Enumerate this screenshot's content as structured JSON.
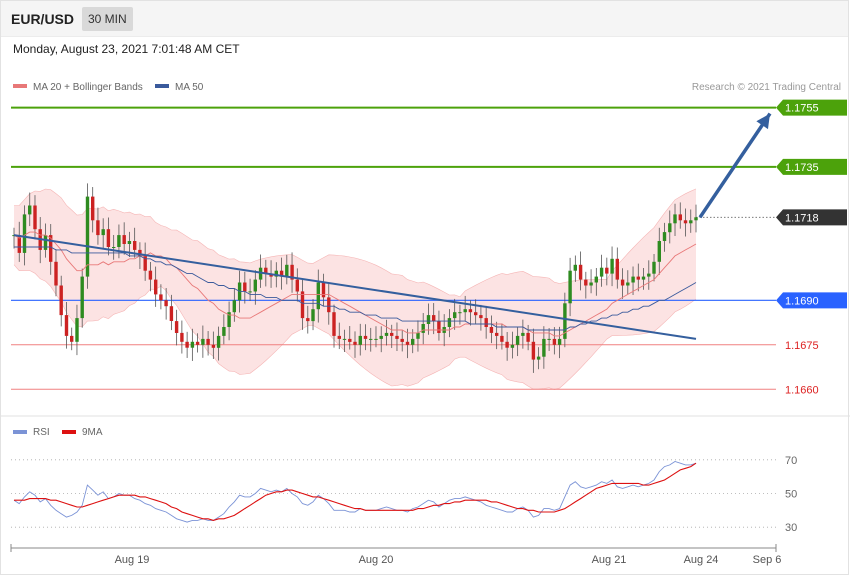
{
  "header": {
    "symbol": "EUR/USD",
    "timeframe": "30 MIN",
    "datetime": "Monday, August 23, 2021 7:01:48 AM CET"
  },
  "legend": {
    "ma20_label": "MA 20 + Bollinger Bands",
    "ma50_label": "MA 50",
    "rsi_label": "RSI",
    "ma9_label": "9MA",
    "copyright": "Research © 2021 Trading Central"
  },
  "colors": {
    "resistance": "#4ca20b",
    "support_major": "#2962ff",
    "support_minor": "#f08080",
    "current": "#333333",
    "up_candle": "#2e8b20",
    "down_candle": "#cc2222",
    "ma20": "#e87878",
    "ma50": "#3a5a9c",
    "bands_fill": "#fbdada",
    "arrow": "#345f9e",
    "rsi": "#7b93d6",
    "rsi_ma": "#dd1111"
  },
  "chart_data": [
    {
      "type": "candlestick",
      "title": "EUR/USD 30 MIN",
      "ylim": [
        1.1653,
        1.1765
      ],
      "x_ticks": [
        "Aug 19",
        "Aug 20",
        "Aug 21",
        "Aug 24",
        "Sep 6"
      ],
      "levels": [
        {
          "label": "1.1755",
          "value": 1.1755,
          "kind": "resistance"
        },
        {
          "label": "1.1735",
          "value": 1.1735,
          "kind": "resistance"
        },
        {
          "label": "1.1718",
          "value": 1.1718,
          "kind": "current"
        },
        {
          "label": "1.1690",
          "value": 1.169,
          "kind": "support-major"
        },
        {
          "label": "1.1675",
          "value": 1.1675,
          "kind": "support-minor"
        },
        {
          "label": "1.1660",
          "value": 1.166,
          "kind": "support-minor"
        }
      ],
      "candles_close": [
        1.1712,
        1.1706,
        1.1719,
        1.1722,
        1.1714,
        1.1707,
        1.1712,
        1.1703,
        1.1695,
        1.1685,
        1.1678,
        1.1676,
        1.1684,
        1.1698,
        1.1725,
        1.1717,
        1.1712,
        1.1714,
        1.1708,
        1.1708,
        1.1712,
        1.1709,
        1.171,
        1.1707,
        1.1705,
        1.17,
        1.1697,
        1.1692,
        1.169,
        1.1688,
        1.1683,
        1.1679,
        1.1676,
        1.1674,
        1.1676,
        1.1675,
        1.1677,
        1.1675,
        1.1674,
        1.1678,
        1.1681,
        1.1686,
        1.169,
        1.1696,
        1.1693,
        1.1693,
        1.1697,
        1.1701,
        1.1699,
        1.1698,
        1.17,
        1.1698,
        1.1702,
        1.1697,
        1.1693,
        1.1684,
        1.1683,
        1.1687,
        1.1696,
        1.1691,
        1.1686,
        1.1678,
        1.1677,
        1.1677,
        1.1676,
        1.1675,
        1.1678,
        1.1677,
        1.1677,
        1.1677,
        1.1678,
        1.1679,
        1.1678,
        1.1677,
        1.1676,
        1.1675,
        1.1677,
        1.1679,
        1.1682,
        1.1685,
        1.1683,
        1.1679,
        1.1681,
        1.1684,
        1.1686,
        1.1686,
        1.1687,
        1.1686,
        1.1685,
        1.1684,
        1.1681,
        1.1679,
        1.1678,
        1.1676,
        1.1674,
        1.1675,
        1.1678,
        1.1679,
        1.1676,
        1.167,
        1.1671,
        1.1677,
        1.1677,
        1.1675,
        1.1677,
        1.1689,
        1.17,
        1.1702,
        1.1697,
        1.1695,
        1.1696,
        1.1698,
        1.1701,
        1.1699,
        1.1704,
        1.1697,
        1.1695,
        1.1696,
        1.1698,
        1.1697,
        1.1698,
        1.1699,
        1.1703,
        1.171,
        1.1713,
        1.1716,
        1.1719,
        1.1717,
        1.1716,
        1.1717,
        1.1718
      ],
      "ma20": [
        1.1712,
        1.1711,
        1.1712,
        1.1713,
        1.1713,
        1.1712,
        1.1712,
        1.1711,
        1.1709,
        1.1707,
        1.1704,
        1.1702,
        1.17,
        1.17,
        1.1702,
        1.1702,
        1.1702,
        1.1703,
        1.1702,
        1.1703,
        1.1703,
        1.1703,
        1.1704,
        1.1704,
        1.1705,
        1.1705,
        1.1706,
        1.1705,
        1.1705,
        1.1704,
        1.1702,
        1.1701,
        1.1699,
        1.1697,
        1.1695,
        1.1694,
        1.1692,
        1.169,
        1.1689,
        1.1687,
        1.1686,
        1.1685,
        1.1685,
        1.1684,
        1.1684,
        1.1684,
        1.1685,
        1.1686,
        1.1687,
        1.1688,
        1.1689,
        1.169,
        1.1691,
        1.1692,
        1.1692,
        1.1692,
        1.1692,
        1.1692,
        1.1692,
        1.1692,
        1.1692,
        1.1691,
        1.169,
        1.1689,
        1.1688,
        1.1687,
        1.1686,
        1.1685,
        1.1684,
        1.1683,
        1.1682,
        1.1681,
        1.168,
        1.168,
        1.168,
        1.1679,
        1.1679,
        1.1679,
        1.168,
        1.168,
        1.168,
        1.168,
        1.168,
        1.168,
        1.1681,
        1.1681,
        1.1682,
        1.1682,
        1.1682,
        1.1682,
        1.1682,
        1.1682,
        1.1682,
        1.1682,
        1.1681,
        1.1681,
        1.1681,
        1.1681,
        1.168,
        1.1679,
        1.1679,
        1.1679,
        1.1679,
        1.1678,
        1.1678,
        1.1679,
        1.168,
        1.1681,
        1.1682,
        1.1683,
        1.1684,
        1.1685,
        1.1686,
        1.1687,
        1.1689,
        1.169,
        1.1691,
        1.1692,
        1.1693,
        1.1694,
        1.1695,
        1.1696,
        1.1697,
        1.1699,
        1.1701,
        1.1703,
        1.1705,
        1.1706,
        1.1707,
        1.1708,
        1.1709
      ],
      "ma50": [
        1.1708,
        1.1708,
        1.1708,
        1.1708,
        1.1708,
        1.1708,
        1.1708,
        1.1708,
        1.1707,
        1.1707,
        1.1707,
        1.1706,
        1.1706,
        1.1706,
        1.1706,
        1.1706,
        1.1706,
        1.1706,
        1.1706,
        1.1706,
        1.1706,
        1.1706,
        1.1705,
        1.1705,
        1.1705,
        1.1704,
        1.1704,
        1.1703,
        1.1703,
        1.1702,
        1.1702,
        1.1701,
        1.17,
        1.1699,
        1.1699,
        1.1698,
        1.1697,
        1.1696,
        1.1696,
        1.1695,
        1.1695,
        1.1694,
        1.1694,
        1.1693,
        1.1693,
        1.1692,
        1.1692,
        1.1692,
        1.1691,
        1.1691,
        1.1691,
        1.169,
        1.169,
        1.169,
        1.169,
        1.1689,
        1.1689,
        1.1689,
        1.1689,
        1.1688,
        1.1688,
        1.1688,
        1.1687,
        1.1687,
        1.1686,
        1.1686,
        1.1686,
        1.1685,
        1.1685,
        1.1685,
        1.1684,
        1.1684,
        1.1684,
        1.1684,
        1.1683,
        1.1683,
        1.1683,
        1.1683,
        1.1683,
        1.1683,
        1.1683,
        1.1683,
        1.1683,
        1.1683,
        1.1683,
        1.1683,
        1.1683,
        1.1682,
        1.1682,
        1.1682,
        1.1682,
        1.1682,
        1.1681,
        1.1681,
        1.1681,
        1.1681,
        1.1681,
        1.1681,
        1.168,
        1.168,
        1.168,
        1.168,
        1.168,
        1.168,
        1.168,
        1.168,
        1.1681,
        1.1681,
        1.1682,
        1.1682,
        1.1683,
        1.1683,
        1.1684,
        1.1684,
        1.1685,
        1.1685,
        1.1686,
        1.1686,
        1.1687,
        1.1687,
        1.1688,
        1.1688,
        1.1689,
        1.169,
        1.169,
        1.1691,
        1.1692,
        1.1693,
        1.1694,
        1.1695,
        1.1696
      ],
      "trendline": [
        [
          1.1712,
          0
        ],
        [
          1.1677,
          100
        ]
      ],
      "target_arrow": [
        1.1718,
        1.1753
      ]
    },
    {
      "type": "line",
      "ylim": [
        20,
        80
      ],
      "y_ticks": [
        "70",
        "50",
        "30"
      ],
      "series": [
        {
          "name": "RSI",
          "values": [
            46,
            44,
            48,
            51,
            49,
            45,
            47,
            43,
            40,
            38,
            36,
            37,
            39,
            43,
            55,
            52,
            49,
            51,
            47,
            48,
            50,
            49,
            49,
            47,
            46,
            44,
            43,
            41,
            40,
            39,
            37,
            35,
            34,
            33,
            34,
            34,
            35,
            34,
            34,
            36,
            38,
            42,
            45,
            49,
            48,
            48,
            50,
            53,
            52,
            51,
            52,
            51,
            53,
            50,
            48,
            44,
            43,
            45,
            49,
            47,
            44,
            40,
            40,
            40,
            39,
            39,
            41,
            40,
            40,
            40,
            41,
            42,
            41,
            40,
            40,
            39,
            41,
            42,
            44,
            46,
            45,
            42,
            44,
            46,
            47,
            47,
            48,
            47,
            46,
            45,
            43,
            42,
            41,
            40,
            39,
            39,
            41,
            42,
            40,
            36,
            37,
            41,
            41,
            40,
            41,
            48,
            55,
            57,
            54,
            53,
            54,
            55,
            57,
            56,
            58,
            54,
            53,
            54,
            55,
            54,
            55,
            56,
            58,
            63,
            66,
            67,
            69,
            68,
            67,
            67,
            68
          ]
        },
        {
          "name": "9MA",
          "values": [
            46,
            46,
            46,
            47,
            47,
            47,
            47,
            46,
            46,
            45,
            44,
            43,
            42,
            42,
            43,
            44,
            45,
            46,
            47,
            48,
            49,
            49,
            49,
            49,
            48,
            48,
            47,
            46,
            45,
            44,
            42,
            41,
            39,
            38,
            37,
            36,
            35,
            35,
            34,
            35,
            35,
            36,
            37,
            39,
            41,
            43,
            45,
            47,
            49,
            50,
            51,
            51,
            52,
            52,
            51,
            50,
            49,
            48,
            48,
            47,
            46,
            45,
            44,
            43,
            42,
            41,
            41,
            40,
            40,
            40,
            40,
            40,
            40,
            40,
            40,
            40,
            40,
            41,
            41,
            42,
            43,
            43,
            44,
            44,
            45,
            45,
            46,
            46,
            46,
            46,
            46,
            45,
            45,
            44,
            43,
            42,
            41,
            41,
            40,
            40,
            39,
            39,
            39,
            39,
            40,
            41,
            43,
            45,
            47,
            49,
            51,
            53,
            54,
            55,
            56,
            56,
            56,
            56,
            56,
            56,
            55,
            55,
            56,
            57,
            58,
            60,
            62,
            64,
            65,
            66,
            68
          ]
        }
      ]
    }
  ]
}
